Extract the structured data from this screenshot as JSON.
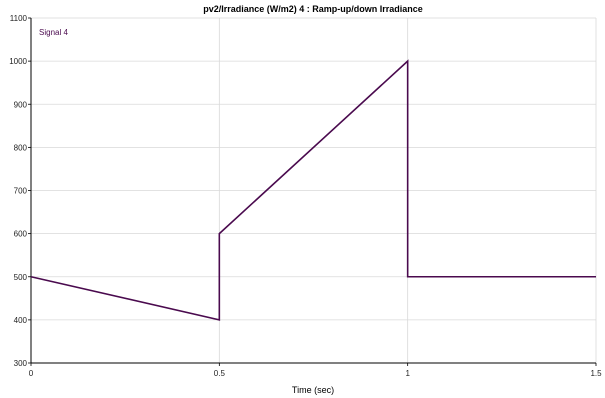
{
  "chart_data": {
    "type": "line",
    "title": "pv2/Irradiance (W/m2) 4 : Ramp-up/down Irradiance",
    "xlabel": "Time (sec)",
    "ylabel": "",
    "xlim": [
      0,
      1.5
    ],
    "ylim": [
      300,
      1100
    ],
    "xticks": [
      0,
      0.5,
      1,
      1.5
    ],
    "xtick_labels": [
      "0",
      "0.5",
      "1",
      "1.5"
    ],
    "yticks": [
      300,
      400,
      500,
      600,
      700,
      800,
      900,
      1000,
      1100
    ],
    "ytick_labels": [
      "300",
      "400",
      "500",
      "600",
      "700",
      "800",
      "900",
      "1000",
      "1100"
    ],
    "grid": true,
    "legend_position": "top-left",
    "series": [
      {
        "name": "Signal 4",
        "color": "#4a0a4e",
        "x": [
          0,
          0.5,
          0.5,
          1,
          1,
          1.5
        ],
        "y": [
          500,
          400,
          600,
          1000,
          500,
          500
        ]
      }
    ]
  }
}
